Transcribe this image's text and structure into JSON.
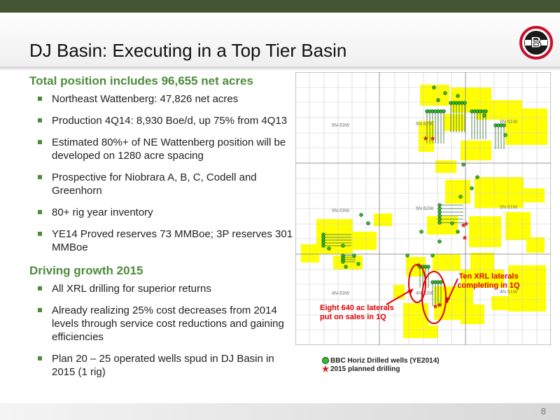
{
  "slide": {
    "title": "DJ Basin: Executing in a Top Tier Basin",
    "page_number": "8",
    "logo_letter": "B"
  },
  "left": {
    "section1": {
      "heading": "Total position includes 96,655 net acres",
      "bullets": [
        "Northeast Wattenberg: 47,826 net acres",
        "Production 4Q14: 8,930 Boe/d, up 75% from 4Q13",
        "Estimated 80%+ of NE Wattenberg position will be developed on 1280 acre spacing",
        "Prospective for Niobrara A, B, C, Codell and Greenhorn",
        "80+ rig year inventory",
        "YE14 Proved reserves 73 MMBoe; 3P reserves 301 MMBoe"
      ]
    },
    "section2": {
      "heading": "Driving growth 2015",
      "bullets": [
        "All XRL drilling for superior returns",
        "Already realizing 25% cost decreases from 2014 levels through service cost reductions and gaining efficiencies",
        "Plan 20 – 25 operated wells spud in DJ Basin in 2015 (1 rig)"
      ]
    }
  },
  "map": {
    "township_labels": [
      "6N 63W",
      "6N 62W",
      "6N 61W",
      "5N 63W",
      "5N 62W",
      "5N 61W",
      "4N 63W",
      "4N 62W",
      "4N 61W"
    ],
    "callout_ten_xrl": "Ten XRL laterals completing in 1Q",
    "callout_eight": "Eight 640 ac laterals put on sales in 1Q",
    "legend": {
      "drilled": "BBC Horiz Drilled wells (YE2014)",
      "planned": "2015 planned drilling"
    },
    "colors": {
      "acreage": "#ffff00",
      "well": "#2fbf2f",
      "planned": "#cc2222",
      "callout": "#e00000"
    }
  }
}
